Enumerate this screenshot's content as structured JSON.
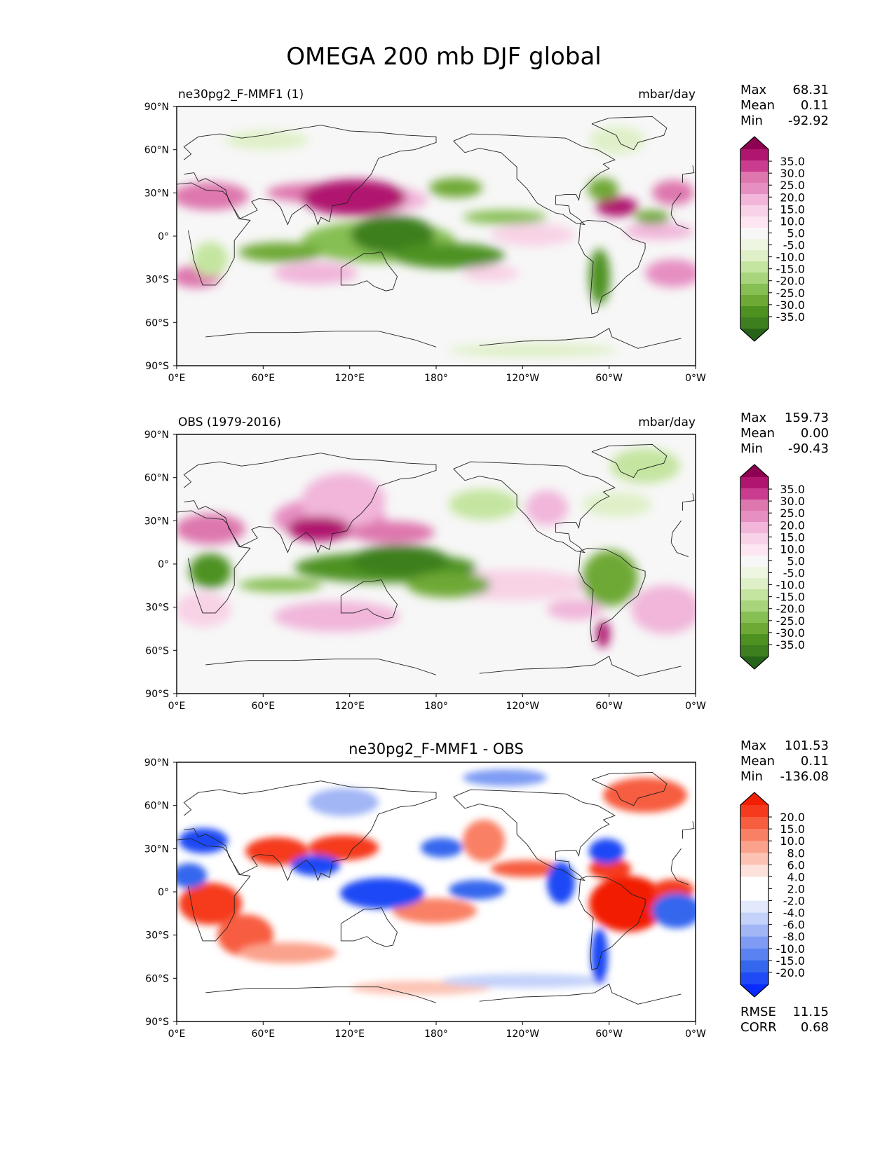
{
  "figure": {
    "title": "OMEGA 200 mb DJF global"
  },
  "colors": {
    "ocean_bg": "#f7f7f7",
    "coast": "#222222",
    "piyg": [
      "#276419",
      "#3d7f1e",
      "#4d9221",
      "#6ea935",
      "#86bf53",
      "#a8d57b",
      "#c4e5a0",
      "#dff0c8",
      "#eef6e2",
      "#f7f7f7",
      "#fde6f1",
      "#f8d2e6",
      "#f1b6da",
      "#e68fc2",
      "#de77ae",
      "#c93c8f",
      "#b0166f",
      "#8e0152"
    ],
    "bwr": [
      "#0a2bff",
      "#1f4af5",
      "#3566ee",
      "#5a82f0",
      "#7e9cf4",
      "#a2b6f6",
      "#c4d1f9",
      "#e3e9fc",
      "#ffffff",
      "#ffffff",
      "#fde2db",
      "#fcc3b4",
      "#fba28c",
      "#f98065",
      "#f75d3f",
      "#f53a1e",
      "#f21f03"
    ]
  },
  "panels": [
    {
      "id": "test",
      "label_left": "ne30pg2_F-MMF1 (1)",
      "label_right": "mbar/day",
      "stats": {
        "max_label": "Max",
        "max": "68.31",
        "mean_label": "Mean",
        "mean": "0.11",
        "min_label": "Min",
        "min": "-92.92"
      },
      "colorbar": {
        "cmap": "piyg",
        "ticks": [
          "35.0",
          "30.0",
          "25.0",
          "20.0",
          "15.0",
          "10.0",
          "5.0",
          "-5.0",
          "-10.0",
          "-15.0",
          "-20.0",
          "-25.0",
          "-30.0",
          "-35.0"
        ]
      }
    },
    {
      "id": "obs",
      "label_left": "OBS (1979-2016)",
      "label_right": "mbar/day",
      "stats": {
        "max_label": "Max",
        "max": "159.73",
        "mean_label": "Mean",
        "mean": "0.00",
        "min_label": "Min",
        "min": "-90.43"
      },
      "colorbar": {
        "cmap": "piyg",
        "ticks": [
          "35.0",
          "30.0",
          "25.0",
          "20.0",
          "15.0",
          "10.0",
          "5.0",
          "-5.0",
          "-10.0",
          "-15.0",
          "-20.0",
          "-25.0",
          "-30.0",
          "-35.0"
        ]
      }
    },
    {
      "id": "diff",
      "label_center": "ne30pg2_F-MMF1 - OBS",
      "stats": {
        "max_label": "Max",
        "max": "101.53",
        "mean_label": "Mean",
        "mean": "0.11",
        "min_label": "Min",
        "min": "-136.08"
      },
      "colorbar": {
        "cmap": "bwr",
        "ticks": [
          "20.0",
          "15.0",
          "10.0",
          "8.0",
          "6.0",
          "4.0",
          "2.0",
          "-2.0",
          "-4.0",
          "-6.0",
          "-8.0",
          "-10.0",
          "-15.0",
          "-20.0"
        ]
      },
      "extra_stats": {
        "rmse_label": "RMSE",
        "rmse": "11.15",
        "corr_label": "CORR",
        "corr": "0.68"
      }
    }
  ],
  "axes": {
    "lat_ticks": [
      "90°N",
      "60°N",
      "30°N",
      "0°",
      "30°S",
      "60°S",
      "90°S"
    ],
    "lon_ticks": [
      "0°E",
      "60°E",
      "120°E",
      "180°",
      "120°W",
      "60°W",
      "0°W"
    ]
  }
}
